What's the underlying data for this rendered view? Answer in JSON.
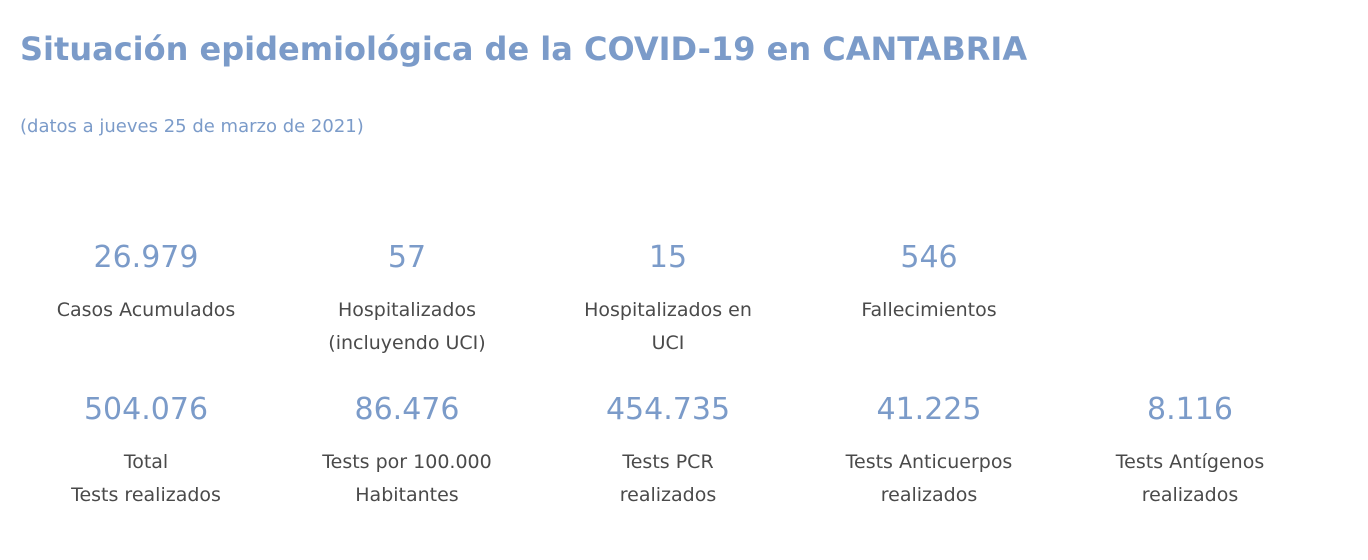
{
  "header": {
    "title": "Situación epidemiológica de la COVID-19 en CANTABRIA",
    "subtitle": "(datos a jueves 25 de marzo de 2021)"
  },
  "stats_row1": [
    {
      "value": "26.979",
      "label": "Casos Acumulados"
    },
    {
      "value": "57",
      "label": "Hospitalizados\n(incluyendo UCI)"
    },
    {
      "value": "15",
      "label": "Hospitalizados en\nUCI"
    },
    {
      "value": "546",
      "label": "Fallecimientos"
    }
  ],
  "stats_row2": [
    {
      "value": "504.076",
      "label": "Total\nTests realizados"
    },
    {
      "value": "86.476",
      "label": "Tests por 100.000\nHabitantes"
    },
    {
      "value": "454.735",
      "label": "Tests PCR\nrealizados"
    },
    {
      "value": "41.225",
      "label": "Tests Anticuerpos\nrealizados"
    },
    {
      "value": "8.116",
      "label": "Tests Antígenos\nrealizados"
    }
  ],
  "colors": {
    "accent": "#7b9bc9",
    "label_text": "#4a4a4a",
    "background": "#ffffff"
  }
}
